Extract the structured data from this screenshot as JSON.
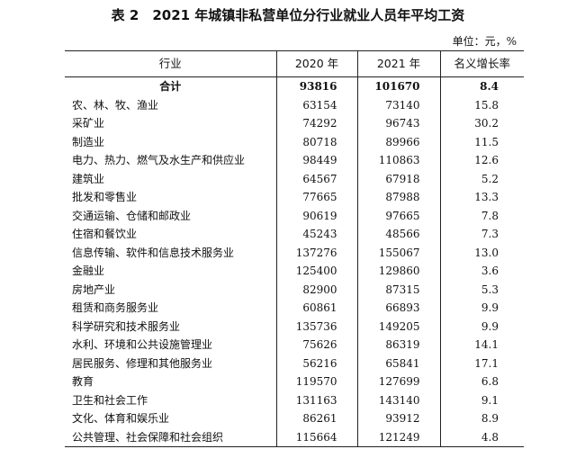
{
  "title": "表 2　2021 年城镇非私营单位分行业就业人员年平均工资",
  "unit": "单位：元，%",
  "headers": [
    "行业",
    "2020 年",
    "2021 年",
    "名义增长率"
  ],
  "rows": [
    {
      "name": "合计",
      "y2020": "93816",
      "y2021": "101670",
      "rate": "8.4"
    },
    {
      "name": "农、林、牧、渔业",
      "y2020": "63154",
      "y2021": "73140",
      "rate": "15.8"
    },
    {
      "name": "采矿业",
      "y2020": "74292",
      "y2021": "96743",
      "rate": "30.2"
    },
    {
      "name": "制造业",
      "y2020": "80718",
      "y2021": "89966",
      "rate": "11.5"
    },
    {
      "name": "电力、热力、燃气及水生产和供应业",
      "y2020": "98449",
      "y2021": "110863",
      "rate": "12.6"
    },
    {
      "name": "建筑业",
      "y2020": "64567",
      "y2021": "67918",
      "rate": "5.2"
    },
    {
      "name": "批发和零售业",
      "y2020": "77665",
      "y2021": "87988",
      "rate": "13.3"
    },
    {
      "name": "交通运输、仓储和邮政业",
      "y2020": "90619",
      "y2021": "97665",
      "rate": "7.8"
    },
    {
      "name": "住宿和餐饮业",
      "y2020": "45243",
      "y2021": "48566",
      "rate": "7.3"
    },
    {
      "name": "信息传输、软件和信息技术服务业",
      "y2020": "137276",
      "y2021": "155067",
      "rate": "13.0"
    },
    {
      "name": "金融业",
      "y2020": "125400",
      "y2021": "129860",
      "rate": "3.6"
    },
    {
      "name": "房地产业",
      "y2020": "82900",
      "y2021": "87315",
      "rate": "5.3"
    },
    {
      "name": "租赁和商务服务业",
      "y2020": "60861",
      "y2021": "66893",
      "rate": "9.9"
    },
    {
      "name": "科学研究和技术服务业",
      "y2020": "135736",
      "y2021": "149205",
      "rate": "9.9"
    },
    {
      "name": "水利、环境和公共设施管理业",
      "y2020": "75626",
      "y2021": "86319",
      "rate": "14.1"
    },
    {
      "name": "居民服务、修理和其他服务业",
      "y2020": "56216",
      "y2021": "65841",
      "rate": "17.1"
    },
    {
      "name": "教育",
      "y2020": "119570",
      "y2021": "127699",
      "rate": "6.8"
    },
    {
      "name": "卫生和社会工作",
      "y2020": "131163",
      "y2021": "143140",
      "rate": "9.1"
    },
    {
      "name": "文化、体育和娱乐业",
      "y2020": "86261",
      "y2021": "93912",
      "rate": "8.9"
    },
    {
      "name": "公共管理、社会保障和社会组织",
      "y2020": "115664",
      "y2021": "121249",
      "rate": "4.8"
    }
  ]
}
